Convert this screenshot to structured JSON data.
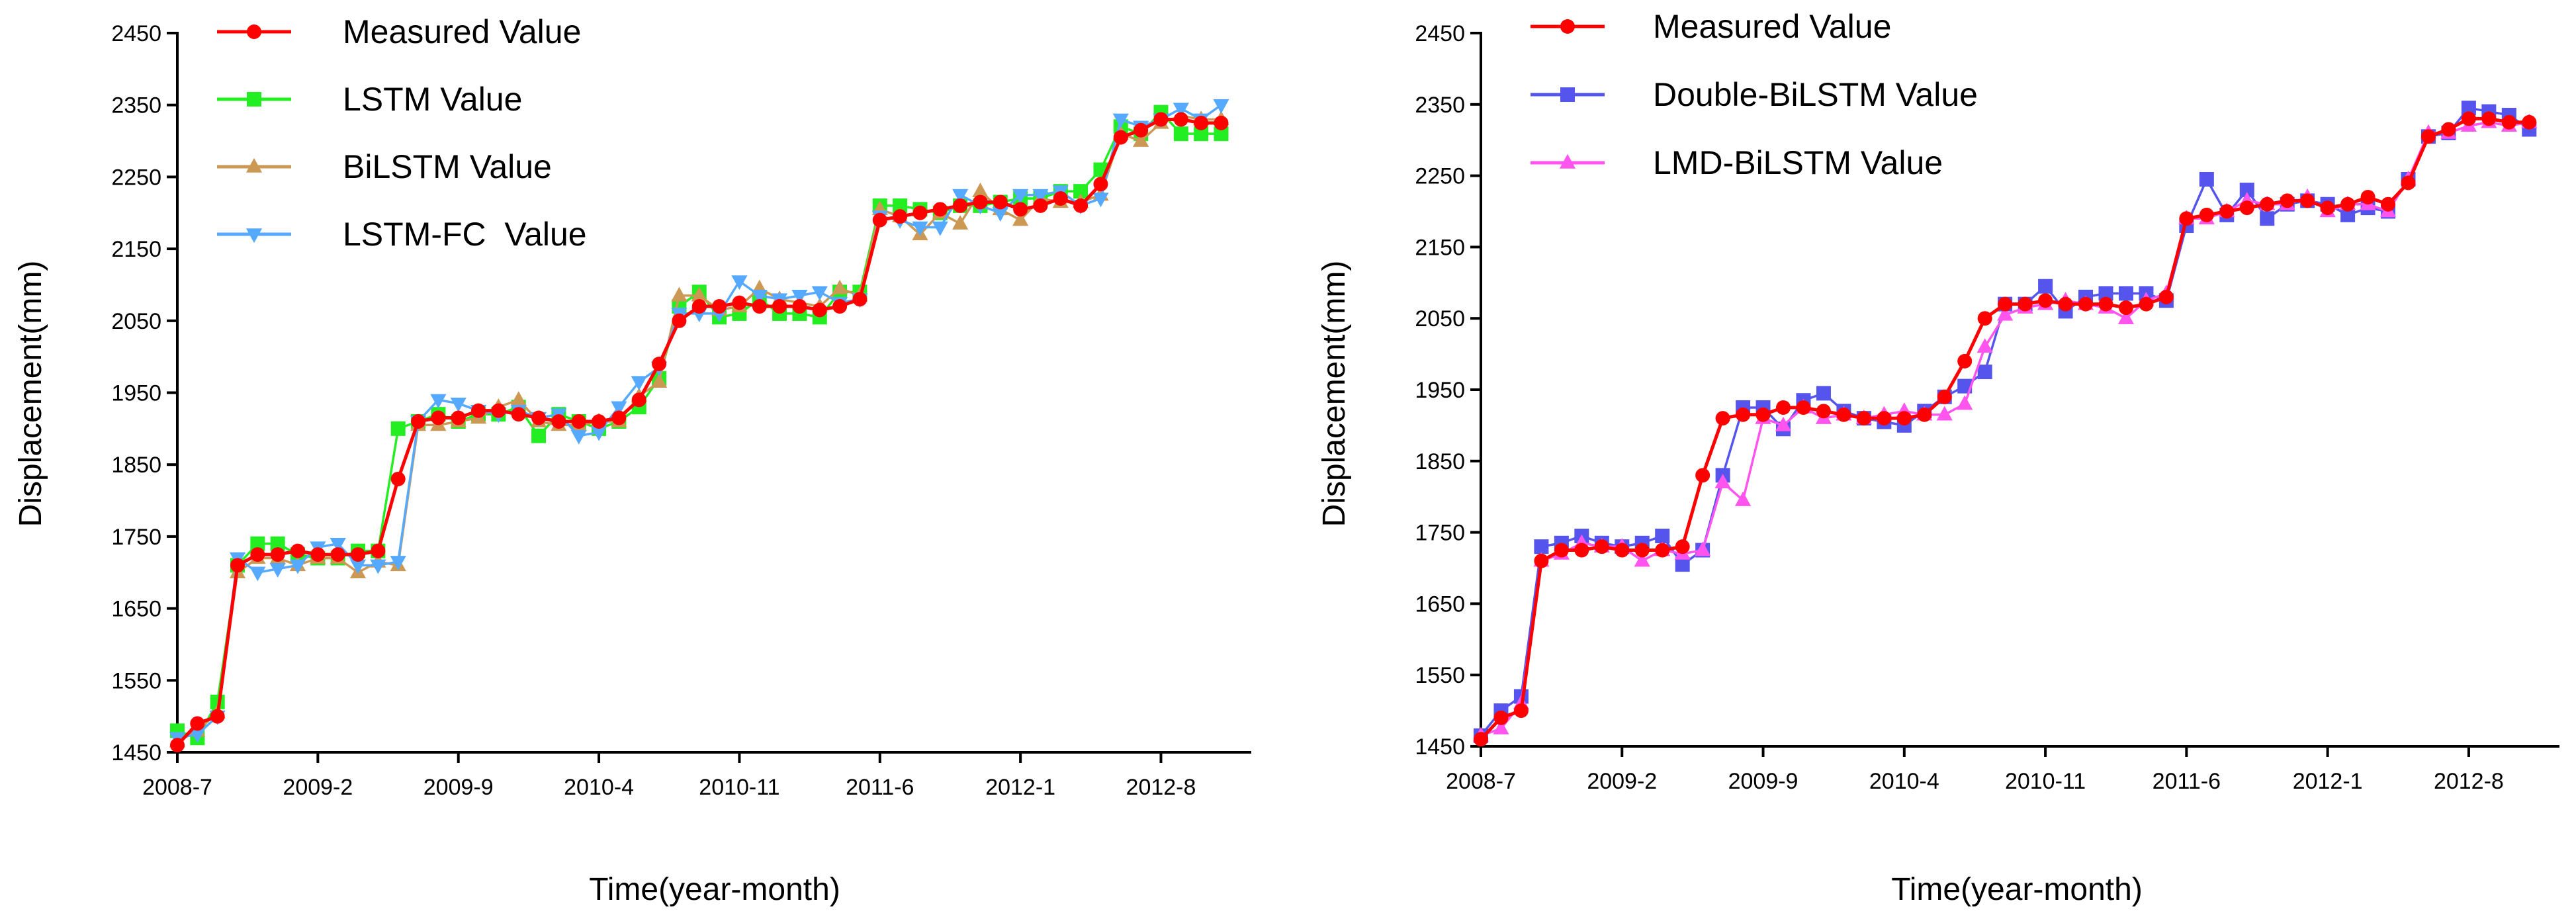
{
  "chart_data": [
    {
      "type": "line",
      "title": "",
      "xlabel": "Time(year-month)",
      "ylabel": "Displacement(mm)",
      "ylim": [
        1450,
        2450
      ],
      "yticks": [
        1450,
        1550,
        1650,
        1750,
        1850,
        1950,
        2050,
        2150,
        2250,
        2350,
        2450
      ],
      "x_tick_labels": [
        "2008-7",
        "2009-2",
        "2009-9",
        "2010-4",
        "2010-11",
        "2011-6",
        "2012-1",
        "2012-8"
      ],
      "x_tick_positions": [
        0,
        7,
        14,
        21,
        28,
        35,
        42,
        49
      ],
      "xlim": [
        0,
        53.5
      ],
      "legend_position": "top-left",
      "series": [
        {
          "name": "Measured Value",
          "color": "#ff0000",
          "marker": "circle",
          "values": [
            1460,
            1490,
            1500,
            1710,
            1725,
            1725,
            1730,
            1725,
            1725,
            1725,
            1730,
            1830,
            1910,
            1915,
            1915,
            1925,
            1925,
            1920,
            1915,
            1910,
            1910,
            1910,
            1915,
            1940,
            1990,
            2050,
            2070,
            2070,
            2075,
            2070,
            2070,
            2070,
            2065,
            2070,
            2080,
            2190,
            2195,
            2200,
            2205,
            2210,
            2215,
            2215,
            2205,
            2210,
            2220,
            2210,
            2240,
            2305,
            2315,
            2330,
            2330,
            2325,
            2325
          ]
        },
        {
          "name": "LSTM Value",
          "color": "#22ee22",
          "marker": "square",
          "values": [
            1480,
            1470,
            1520,
            1710,
            1740,
            1740,
            1725,
            1720,
            1720,
            1730,
            1730,
            1900,
            1910,
            1920,
            1910,
            1920,
            1920,
            1930,
            1890,
            1920,
            1910,
            1900,
            1910,
            1930,
            1970,
            2070,
            2090,
            2055,
            2060,
            2080,
            2060,
            2060,
            2055,
            2090,
            2090,
            2210,
            2210,
            2205,
            2200,
            2210,
            2210,
            2215,
            2220,
            2220,
            2230,
            2230,
            2260,
            2320,
            2310,
            2340,
            2310,
            2310,
            2310
          ]
        },
        {
          "name": "BiLSTM Value",
          "color": "#cc9955",
          "marker": "triangle-up",
          "values": [
            1465,
            1480,
            1505,
            1700,
            1720,
            1720,
            1710,
            1720,
            1720,
            1700,
            1715,
            1710,
            1905,
            1905,
            1910,
            1915,
            1930,
            1940,
            1910,
            1905,
            1905,
            1910,
            1910,
            1945,
            1965,
            2085,
            2085,
            2065,
            2070,
            2095,
            2080,
            2075,
            2070,
            2095,
            2085,
            2205,
            2195,
            2170,
            2200,
            2185,
            2230,
            2205,
            2190,
            2220,
            2215,
            2215,
            2225,
            2310,
            2300,
            2325,
            2335,
            2330,
            2330
          ]
        },
        {
          "name": "LSTM-FC  Value",
          "color": "#55aaff",
          "marker": "triangle-down",
          "values": [
            1470,
            1475,
            1500,
            1720,
            1700,
            1705,
            1710,
            1735,
            1740,
            1710,
            1710,
            1715,
            1910,
            1940,
            1935,
            1925,
            1920,
            1925,
            1915,
            1920,
            1890,
            1895,
            1930,
            1965,
            1985,
            2060,
            2060,
            2060,
            2105,
            2085,
            2080,
            2085,
            2090,
            2075,
            2080,
            2195,
            2190,
            2180,
            2180,
            2225,
            2210,
            2200,
            2225,
            2225,
            2230,
            2210,
            2220,
            2330,
            2320,
            2330,
            2345,
            2330,
            2350
          ]
        }
      ]
    },
    {
      "type": "line",
      "title": "",
      "xlabel": "Time(year-month)",
      "ylabel": "Displacement(mm)",
      "ylim": [
        1450,
        2450
      ],
      "yticks": [
        1450,
        1550,
        1650,
        1750,
        1850,
        1950,
        2050,
        2150,
        2250,
        2350,
        2450
      ],
      "x_tick_labels": [
        "2008-7",
        "2009-2",
        "2009-9",
        "2010-4",
        "2010-11",
        "2011-6",
        "2012-1",
        "2012-8"
      ],
      "x_tick_positions": [
        0,
        7,
        14,
        21,
        28,
        35,
        42,
        49
      ],
      "xlim": [
        0,
        53.5
      ],
      "legend_position": "top-left",
      "series": [
        {
          "name": "Measured Value",
          "color": "#ff0000",
          "marker": "circle",
          "values": [
            1460,
            1490,
            1500,
            1710,
            1725,
            1725,
            1730,
            1725,
            1725,
            1725,
            1730,
            1830,
            1910,
            1915,
            1915,
            1925,
            1925,
            1920,
            1915,
            1910,
            1910,
            1910,
            1915,
            1940,
            1990,
            2050,
            2070,
            2070,
            2075,
            2070,
            2070,
            2070,
            2065,
            2070,
            2080,
            2190,
            2195,
            2200,
            2205,
            2210,
            2215,
            2215,
            2205,
            2210,
            2220,
            2210,
            2240,
            2305,
            2315,
            2330,
            2330,
            2325,
            2325
          ]
        },
        {
          "name": "Double-BiLSTM Value",
          "color": "#5555ee",
          "marker": "square",
          "values": [
            1465,
            1500,
            1520,
            1730,
            1735,
            1745,
            1735,
            1730,
            1735,
            1745,
            1705,
            1725,
            1830,
            1925,
            1925,
            1895,
            1935,
            1945,
            1920,
            1910,
            1905,
            1900,
            1920,
            1940,
            1955,
            1975,
            2070,
            2070,
            2095,
            2060,
            2080,
            2085,
            2085,
            2085,
            2075,
            2180,
            2245,
            2195,
            2230,
            2190,
            2210,
            2215,
            2210,
            2195,
            2205,
            2200,
            2245,
            2305,
            2310,
            2345,
            2340,
            2335,
            2315
          ]
        },
        {
          "name": "LMD-BiLSTM Value",
          "color": "#ff55ee",
          "marker": "triangle-up",
          "values": [
            1465,
            1475,
            1510,
            1710,
            1720,
            1735,
            1730,
            1730,
            1710,
            1725,
            1720,
            1725,
            1820,
            1795,
            1910,
            1900,
            1925,
            1910,
            1915,
            1910,
            1915,
            1920,
            1915,
            1915,
            1930,
            2010,
            2055,
            2065,
            2070,
            2075,
            2070,
            2065,
            2050,
            2075,
            2085,
            2190,
            2190,
            2200,
            2215,
            2210,
            2210,
            2220,
            2200,
            2210,
            2210,
            2200,
            2245,
            2310,
            2310,
            2320,
            2325,
            2320,
            2325
          ]
        }
      ]
    }
  ]
}
